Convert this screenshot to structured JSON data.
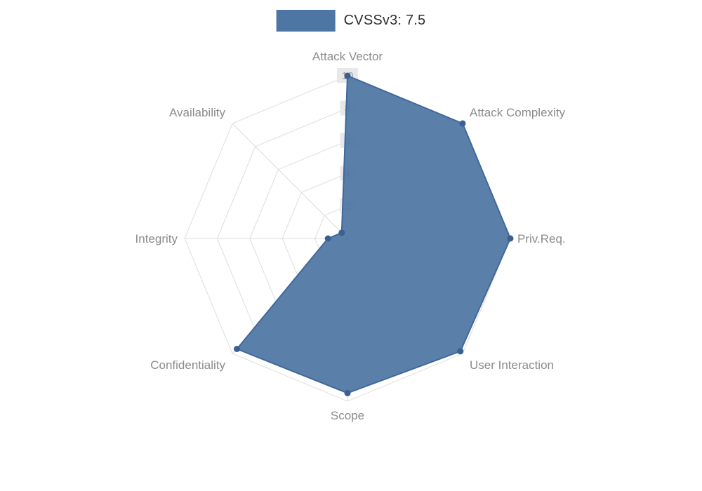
{
  "legend": {
    "label": "CVSSv3: 7.5"
  },
  "chart_data": {
    "type": "radar",
    "title": "CVSSv3: 7.5",
    "categories": [
      "Attack Vector",
      "Attack Complexity",
      "Priv.Req.",
      "User Interaction",
      "Scope",
      "Confidentiality",
      "Integrity",
      "Availability"
    ],
    "series": [
      {
        "name": "CVSSv3: 7.5",
        "values": [
          10,
          10,
          10,
          9.8,
          9.5,
          9.6,
          1.2,
          0.5
        ]
      }
    ],
    "ticks": [
      2,
      4,
      6,
      8,
      10
    ],
    "ylim": [
      0,
      10
    ],
    "grid": true,
    "legend_position": "top"
  },
  "colors": {
    "series_fill": "#4e76a4",
    "series_stroke": "#40689a",
    "marker": "#3a5f90",
    "grid_line": "#dedede",
    "axis_label": "#8b8b8b",
    "tick_text": "#9a9a9a",
    "tick_bg": "#e8e8e8",
    "legend_text": "#2f2f2f",
    "background": "#ffffff"
  }
}
